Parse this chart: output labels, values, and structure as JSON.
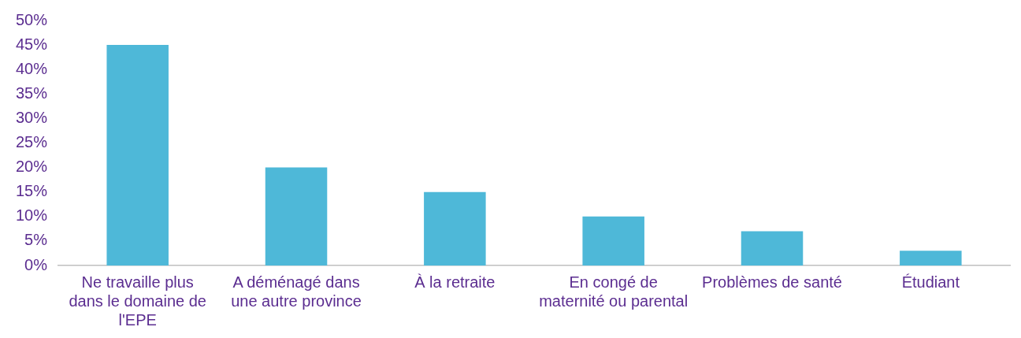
{
  "chart_data": {
    "type": "bar",
    "categories": [
      "Ne travaille plus dans le domaine de l'EPE",
      "A déménagé dans une autre province",
      "À la retraite",
      "En congé de maternité ou parental",
      "Problèmes de santé",
      "Étudiant"
    ],
    "values": [
      45,
      20,
      15,
      10,
      7,
      3
    ],
    "color": "#4eb8d8",
    "ylim": [
      0,
      50
    ],
    "yticks": [
      {
        "value": 0,
        "label": "0%"
      },
      {
        "value": 5,
        "label": "5%"
      },
      {
        "value": 10,
        "label": "10%"
      },
      {
        "value": 15,
        "label": "15%"
      },
      {
        "value": 20,
        "label": "20%"
      },
      {
        "value": 25,
        "label": "25%"
      },
      {
        "value": 30,
        "label": "30%"
      },
      {
        "value": 35,
        "label": "35%"
      },
      {
        "value": 40,
        "label": "40%"
      },
      {
        "value": 45,
        "label": "45%"
      },
      {
        "value": 50,
        "label": "50%"
      }
    ],
    "grid": false,
    "legend": false
  }
}
